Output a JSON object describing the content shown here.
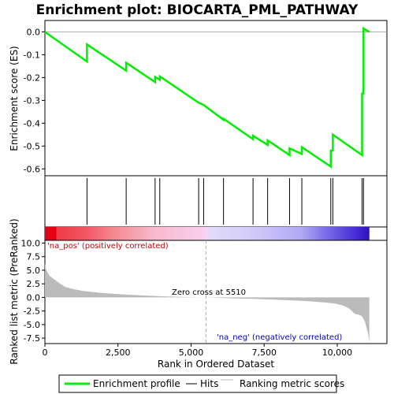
{
  "chart_data": {
    "type": "line",
    "title": "Enrichment plot: BIOCARTA_PML_PATHWAY",
    "es_panel": {
      "ylabel": "Enrichment score (ES)",
      "ylim": [
        -0.63,
        0.05
      ],
      "yticks": [
        0.0,
        -0.1,
        -0.2,
        -0.3,
        -0.4,
        -0.5,
        -0.6
      ],
      "ytick_labels": [
        "0.0",
        "-0.1",
        "-0.2",
        "-0.3",
        "-0.4",
        "-0.5",
        "-0.6"
      ],
      "series": [
        {
          "name": "Enrichment profile",
          "color": "#00ee00",
          "x": [
            0,
            1440,
            1440,
            2780,
            2780,
            3770,
            3770,
            3930,
            3930,
            5260,
            5260,
            5430,
            5430,
            6110,
            6110,
            7120,
            7120,
            7620,
            7620,
            8370,
            8370,
            8790,
            8790,
            9780,
            9780,
            9850,
            9850,
            10850,
            10850,
            10900,
            10900,
            11100
          ],
          "y": [
            0.0,
            -0.13,
            -0.055,
            -0.17,
            -0.135,
            -0.22,
            -0.197,
            -0.21,
            -0.195,
            -0.31,
            -0.31,
            -0.32,
            -0.32,
            -0.385,
            -0.38,
            -0.47,
            -0.455,
            -0.495,
            -0.475,
            -0.54,
            -0.51,
            -0.535,
            -0.505,
            -0.59,
            -0.52,
            -0.52,
            -0.45,
            -0.54,
            -0.27,
            -0.27,
            0.015,
            0.0
          ]
        }
      ]
    },
    "hits_panel": {
      "name": "Hits",
      "positions": [
        1440,
        2780,
        3770,
        3930,
        5260,
        5430,
        6110,
        7120,
        7620,
        8370,
        8790,
        9780,
        9850,
        10850,
        10900
      ]
    },
    "rank_panel": {
      "name": "Ranking metric scores",
      "ylabel": "Ranked list metric (PreRanked)",
      "ylim": [
        -8.5,
        10.5
      ],
      "yticks": [
        10.0,
        7.5,
        5.0,
        2.5,
        0.0,
        -2.5,
        -5.0,
        -7.5
      ],
      "ytick_labels": [
        "10.0",
        "7.5",
        "5.0",
        "2.5",
        "0.0",
        "-2.5",
        "-5.0",
        "-7.5"
      ],
      "color": "#bbbbbb",
      "x": [
        0,
        50,
        150,
        300,
        500,
        700,
        1000,
        1300,
        1600,
        2000,
        2500,
        3000,
        3500,
        4000,
        4500,
        5000,
        5510,
        6000,
        6500,
        7000,
        7500,
        8000,
        8500,
        9000,
        9500,
        9900,
        10200,
        10400,
        10600,
        10750,
        10850,
        10950,
        11000,
        11050,
        11100
      ],
      "y": [
        6.2,
        5.0,
        4.0,
        3.4,
        2.6,
        1.9,
        1.5,
        1.2,
        1.0,
        0.8,
        0.6,
        0.45,
        0.3,
        0.2,
        0.12,
        0.05,
        0.0,
        -0.1,
        -0.2,
        -0.25,
        -0.35,
        -0.45,
        -0.55,
        -0.7,
        -0.9,
        -1.1,
        -1.5,
        -2.0,
        -3.0,
        -3.2,
        -3.5,
        -4.5,
        -5.5,
        -6.5,
        -8.2
      ]
    },
    "xaxis": {
      "xlabel": "Rank in Ordered Dataset",
      "xlim": [
        0,
        11700
      ],
      "xticks": [
        0,
        2500,
        5000,
        7500,
        10000
      ],
      "xtick_labels": [
        "0",
        "2,500",
        "5,000",
        "7,500",
        "10,000"
      ]
    },
    "annotations": {
      "pos_label": "'na_pos' (positively correlated)",
      "neg_label": "'na_neg' (negatively correlated)",
      "zero_cross_label": "Zero cross at 5510",
      "zero_cross_x": 5510
    },
    "gradient": {
      "x_end": 11100,
      "stops": [
        {
          "x": 0,
          "color": "#e8001a"
        },
        {
          "x": 380,
          "color": "#e00010"
        },
        {
          "x": 400,
          "color": "#f03a46"
        },
        {
          "x": 1500,
          "color": "#f25a66"
        },
        {
          "x": 2400,
          "color": "#f48a92"
        },
        {
          "x": 3700,
          "color": "#f8b8cc"
        },
        {
          "x": 5500,
          "color": "#f8d0f0"
        },
        {
          "x": 5600,
          "color": "#e0dcf8"
        },
        {
          "x": 7000,
          "color": "#d4ccf8"
        },
        {
          "x": 8800,
          "color": "#b0a8f4"
        },
        {
          "x": 9600,
          "color": "#7a6ee8"
        },
        {
          "x": 10600,
          "color": "#4a2ed8"
        },
        {
          "x": 11100,
          "color": "#2a10c0"
        }
      ]
    },
    "legend": {
      "items": [
        {
          "label": "Enrichment profile",
          "color": "#00ee00",
          "style": "thick-line"
        },
        {
          "label": "Hits",
          "color": "#000000",
          "style": "line"
        },
        {
          "label": "Ranking metric scores",
          "color": "#bbbbbb",
          "style": "line"
        }
      ],
      "placement": "bottom"
    }
  }
}
